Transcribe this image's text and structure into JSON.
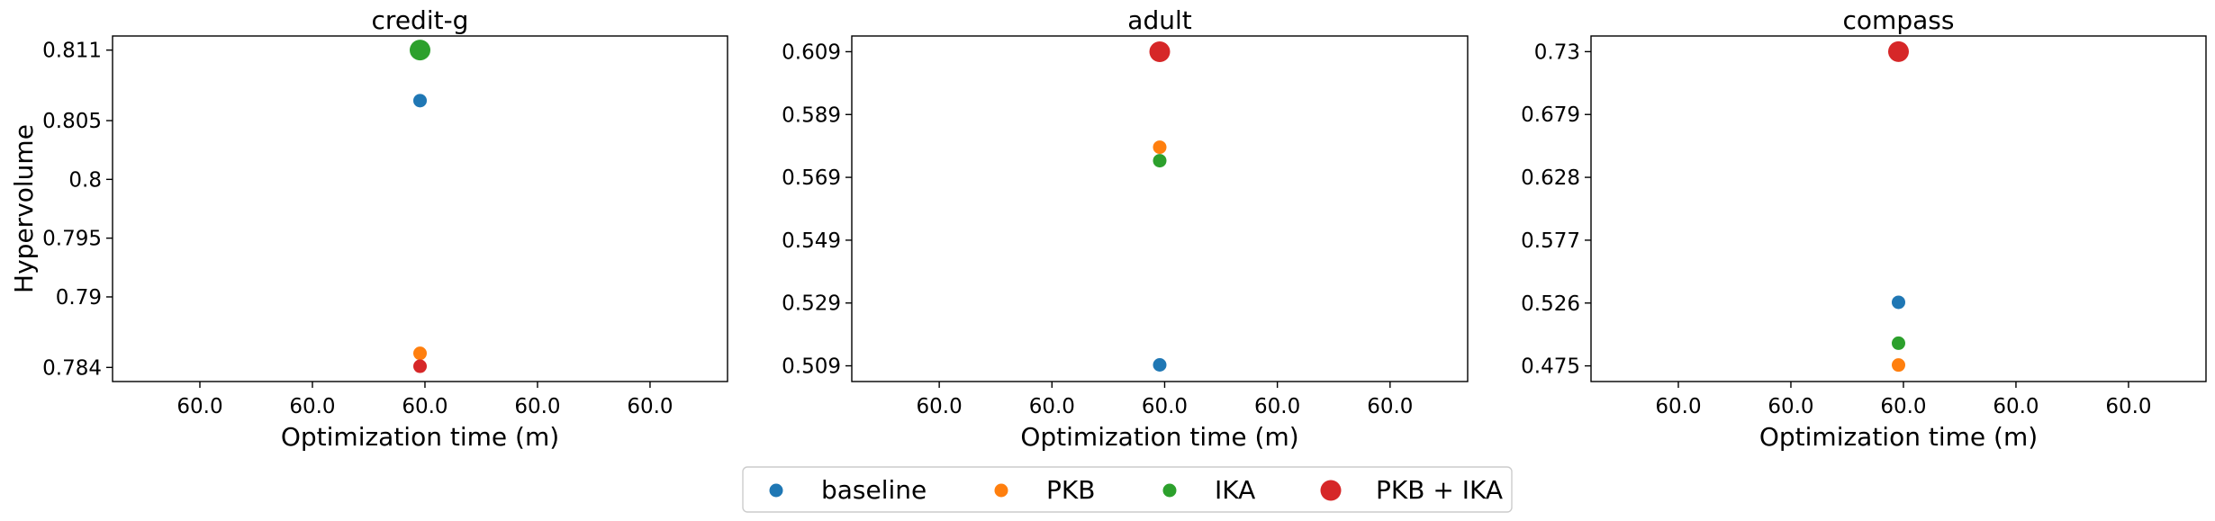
{
  "chart_data": [
    {
      "type": "scatter",
      "title": "credit-g",
      "xlabel": "Optimization time (m)",
      "ylabel": "Hypervolume",
      "x_tick_labels": [
        "60.0",
        "60.0",
        "60.0",
        "60.0",
        "60.0"
      ],
      "y_ticks": [
        {
          "value": 0.784,
          "label": "0.784"
        },
        {
          "value": 0.79,
          "label": "0.79"
        },
        {
          "value": 0.795,
          "label": "0.795"
        },
        {
          "value": 0.8,
          "label": "0.8"
        },
        {
          "value": 0.805,
          "label": "0.805"
        },
        {
          "value": 0.811,
          "label": "0.811"
        }
      ],
      "xlim": [
        59.45,
        60.55
      ],
      "ylim": [
        0.7828,
        0.8122
      ],
      "series": [
        {
          "name": "baseline",
          "x": 60.0,
          "y": 0.8067
        },
        {
          "name": "PKB",
          "x": 60.0,
          "y": 0.7852
        },
        {
          "name": "IKA",
          "x": 60.0,
          "y": 0.811
        },
        {
          "name": "PKB + IKA",
          "x": 60.0,
          "y": 0.7841
        }
      ]
    },
    {
      "type": "scatter",
      "title": "adult",
      "xlabel": "Optimization time (m)",
      "ylabel": "",
      "x_tick_labels": [
        "60.0",
        "60.0",
        "60.0",
        "60.0",
        "60.0"
      ],
      "y_ticks": [
        {
          "value": 0.509,
          "label": "0.509"
        },
        {
          "value": 0.529,
          "label": "0.529"
        },
        {
          "value": 0.549,
          "label": "0.549"
        },
        {
          "value": 0.569,
          "label": "0.569"
        },
        {
          "value": 0.589,
          "label": "0.589"
        },
        {
          "value": 0.609,
          "label": "0.609"
        }
      ],
      "xlim": [
        59.45,
        60.55
      ],
      "ylim": [
        0.504,
        0.614
      ],
      "series": [
        {
          "name": "baseline",
          "x": 60.0,
          "y": 0.5093
        },
        {
          "name": "PKB",
          "x": 60.0,
          "y": 0.5786
        },
        {
          "name": "IKA",
          "x": 60.0,
          "y": 0.5743
        },
        {
          "name": "PKB + IKA",
          "x": 60.0,
          "y": 0.609
        }
      ]
    },
    {
      "type": "scatter",
      "title": "compass",
      "xlabel": "Optimization time (m)",
      "ylabel": "",
      "x_tick_labels": [
        "60.0",
        "60.0",
        "60.0",
        "60.0",
        "60.0"
      ],
      "y_ticks": [
        {
          "value": 0.475,
          "label": "0.475"
        },
        {
          "value": 0.526,
          "label": "0.526"
        },
        {
          "value": 0.577,
          "label": "0.577"
        },
        {
          "value": 0.628,
          "label": "0.628"
        },
        {
          "value": 0.679,
          "label": "0.679"
        },
        {
          "value": 0.73,
          "label": "0.73"
        }
      ],
      "xlim": [
        59.45,
        60.55
      ],
      "ylim": [
        0.4623,
        0.7427
      ],
      "series": [
        {
          "name": "baseline",
          "x": 60.0,
          "y": 0.5266
        },
        {
          "name": "PKB",
          "x": 60.0,
          "y": 0.4757
        },
        {
          "name": "IKA",
          "x": 60.0,
          "y": 0.4934
        },
        {
          "name": "PKB + IKA",
          "x": 60.0,
          "y": 0.73
        }
      ]
    }
  ],
  "legend": {
    "placement": "bottom-center",
    "entries": [
      {
        "label": "baseline",
        "color": "#1f77b4",
        "size": "small"
      },
      {
        "label": "PKB",
        "color": "#ff7f0e",
        "size": "small"
      },
      {
        "label": "IKA",
        "color": "#2ca02c",
        "size": "small"
      },
      {
        "label": "PKB + IKA",
        "color": "#d62728",
        "size": "large"
      }
    ]
  },
  "series_colors": {
    "baseline": "#1f77b4",
    "PKB": "#ff7f0e",
    "IKA": "#2ca02c",
    "PKB + IKA": "#d62728"
  },
  "highlight_rule": "the best series in each panel is drawn with a large marker"
}
